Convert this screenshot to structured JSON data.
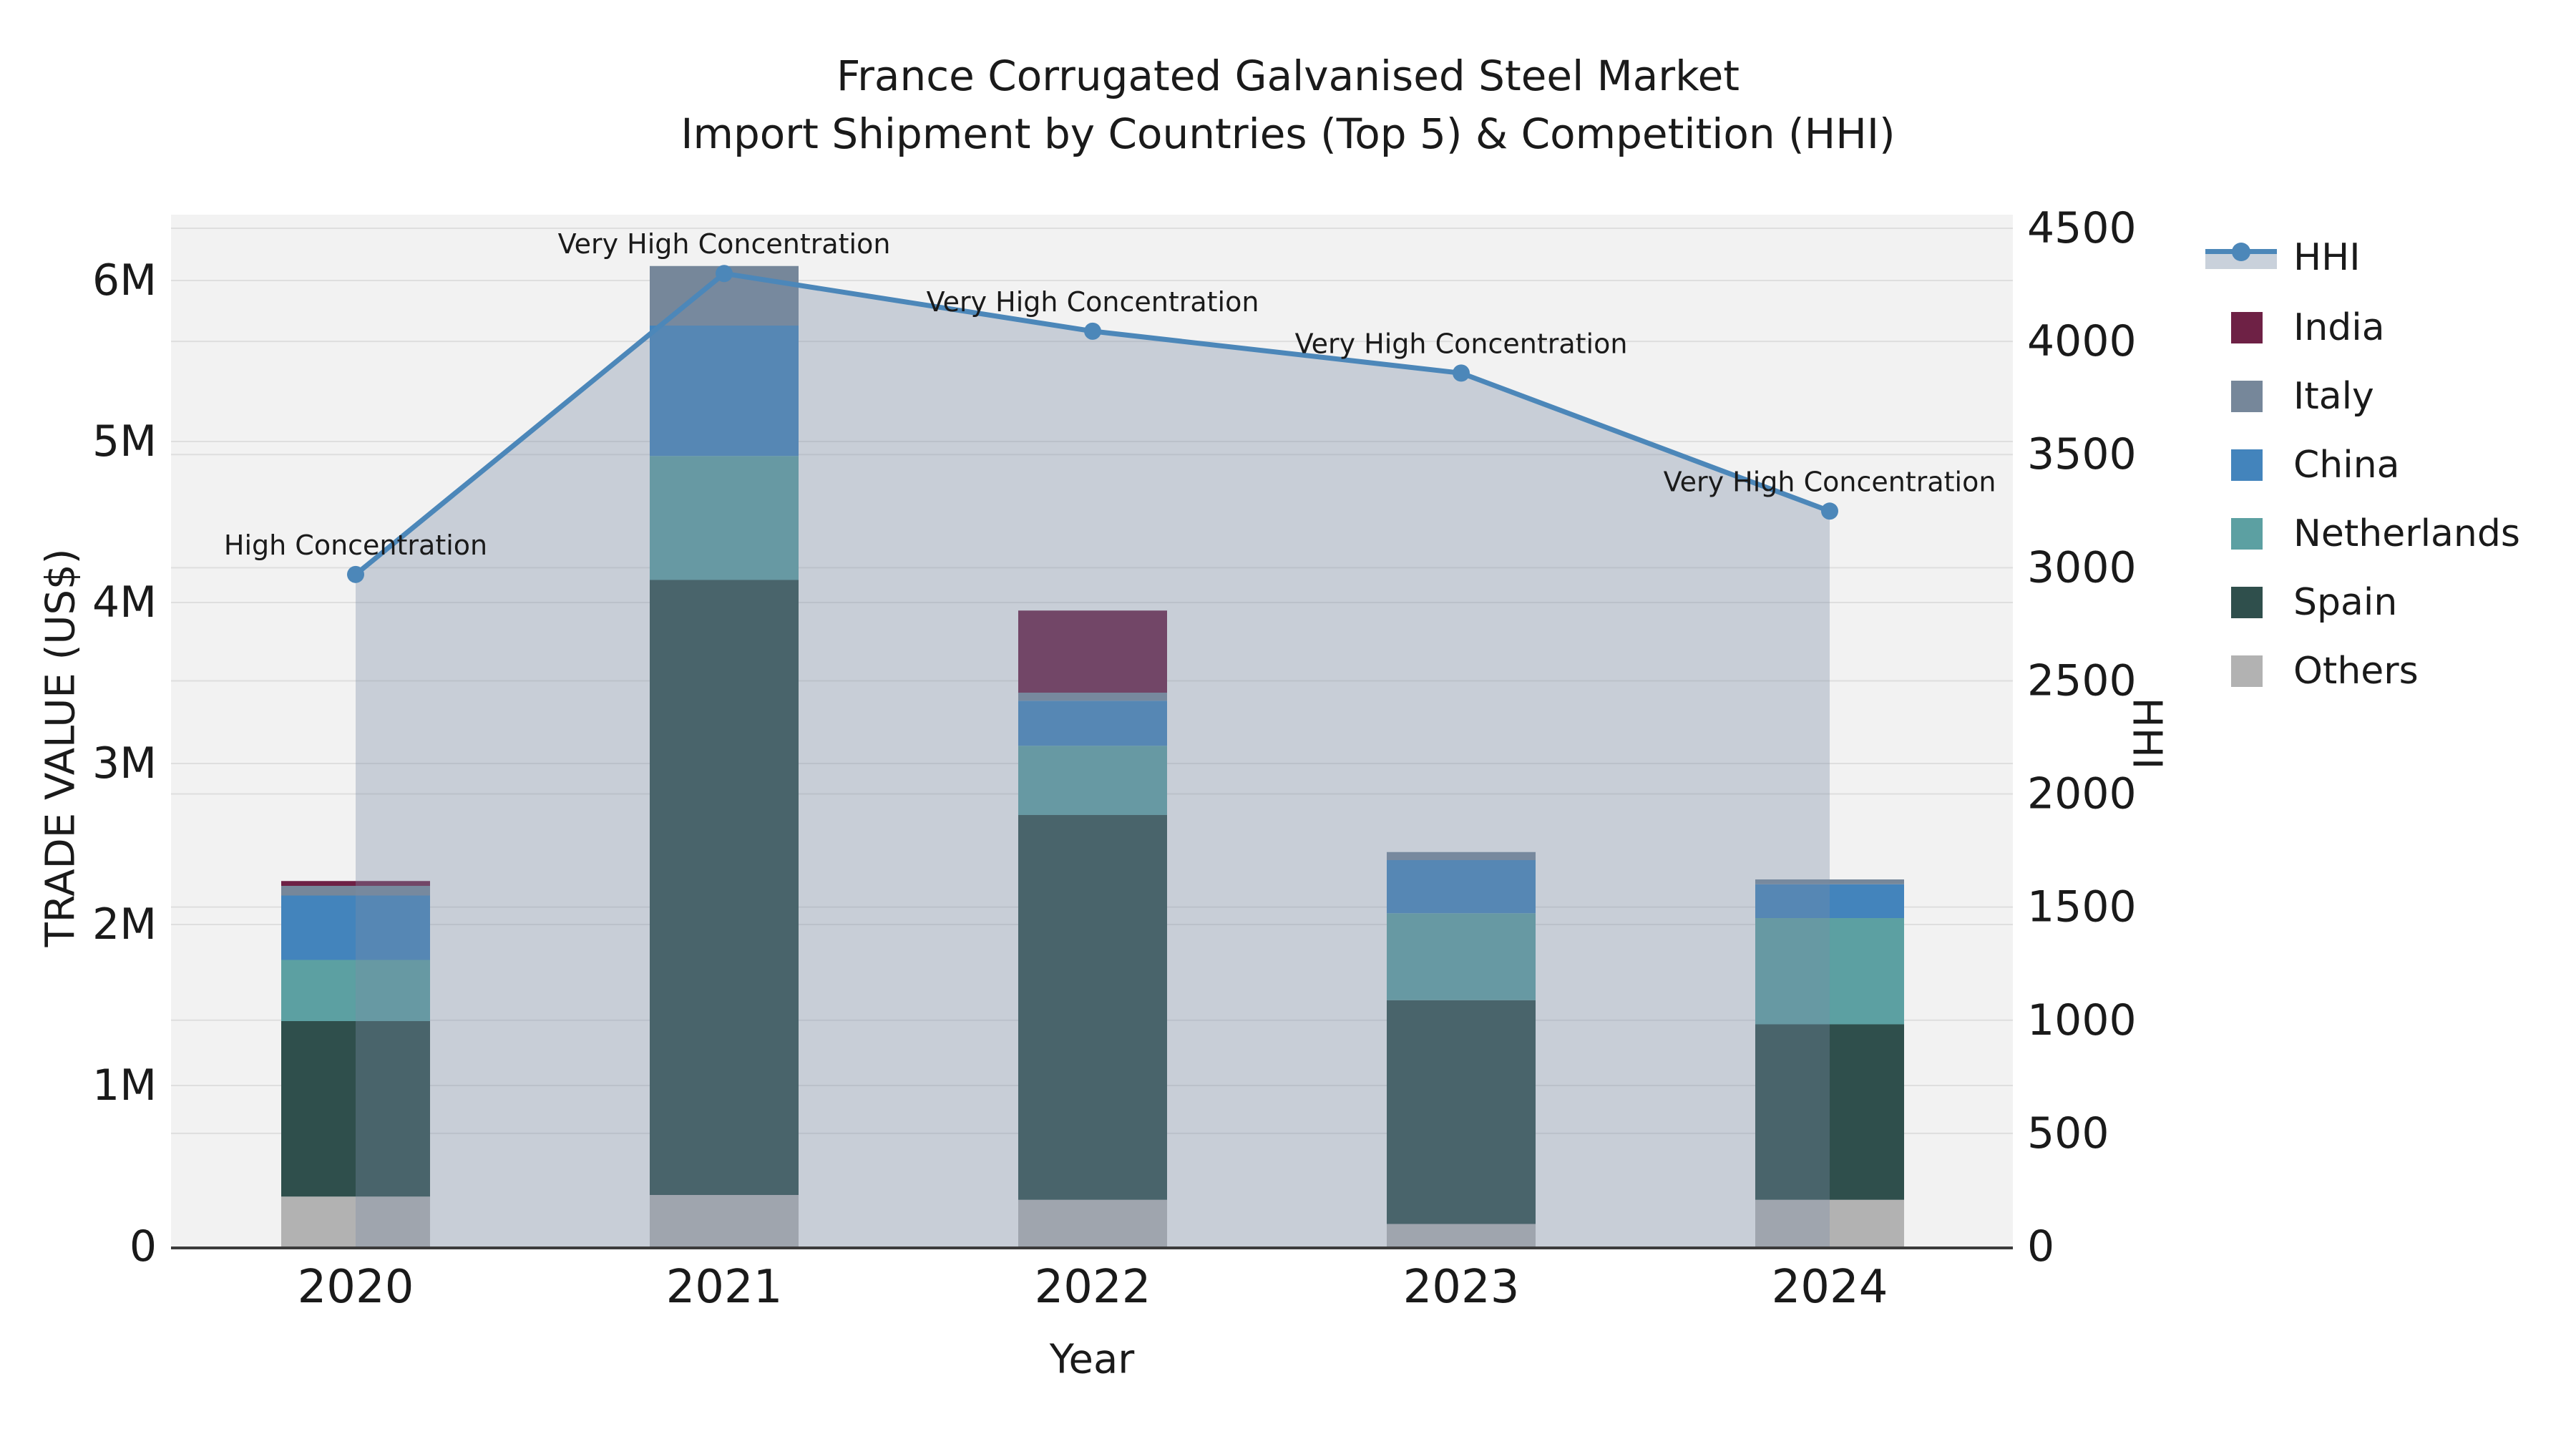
{
  "title": {
    "line1": "France Corrugated Galvanised Steel Market",
    "line2": "Import Shipment by Countries (Top 5) & Competition (HHI)"
  },
  "axes": {
    "x_label": "Year",
    "y_left_label": "TRADE VALUE (US$)",
    "y_right_label": "HHI"
  },
  "chart_data": {
    "type": "combo: stacked bar (trade value, left axis) + line with markers and area fill (HHI, right axis)",
    "categories": [
      "2020",
      "2021",
      "2022",
      "2023",
      "2024"
    ],
    "bar_unit": "US$ millions",
    "stack_order_bottom_to_top": [
      "Others",
      "Spain",
      "Netherlands",
      "China",
      "Italy",
      "India"
    ],
    "series": [
      {
        "name": "India",
        "color": "#6E2145",
        "values": [
          0.03,
          0.0,
          0.51,
          0.0,
          0.0
        ]
      },
      {
        "name": "Italy",
        "color": "#76879A",
        "values": [
          0.06,
          0.37,
          0.05,
          0.05,
          0.03
        ]
      },
      {
        "name": "China",
        "color": "#4384BC",
        "values": [
          0.4,
          0.81,
          0.28,
          0.33,
          0.21
        ]
      },
      {
        "name": "Netherlands",
        "color": "#5CA0A2",
        "values": [
          0.38,
          0.77,
          0.43,
          0.54,
          0.66
        ]
      },
      {
        "name": "Spain",
        "color": "#2F4F4C",
        "values": [
          1.09,
          3.82,
          2.39,
          1.39,
          1.09
        ]
      },
      {
        "name": "Others",
        "color": "#B2B2B2",
        "values": [
          0.31,
          0.32,
          0.29,
          0.14,
          0.29
        ]
      }
    ],
    "bar_totals_millions": [
      2.27,
      6.09,
      3.95,
      2.45,
      2.28
    ],
    "line": {
      "name": "HHI",
      "color": "#4C87B9",
      "area_fill_color": "rgba(124,141,167,0.35)",
      "values": [
        2970,
        4300,
        4045,
        3860,
        3250
      ]
    },
    "annotations": [
      "High Concentration",
      "Very High Concentration",
      "Very High Concentration",
      "Very High Concentration",
      "Very High Concentration"
    ],
    "y_left": {
      "tick_values": [
        0,
        1,
        2,
        3,
        4,
        5,
        6
      ],
      "tick_labels": [
        "0",
        "1M",
        "2M",
        "3M",
        "4M",
        "5M",
        "6M"
      ],
      "range_millions": [
        0,
        6.41
      ]
    },
    "y_right": {
      "tick_values": [
        0,
        500,
        1000,
        1500,
        2000,
        2500,
        3000,
        3500,
        4000,
        4500
      ],
      "tick_labels": [
        "0",
        "500",
        "1000",
        "1500",
        "2000",
        "2500",
        "3000",
        "3500",
        "4000",
        "4500"
      ],
      "range": [
        0,
        4560
      ]
    },
    "grid": true,
    "plot_background": "#F2F2F2",
    "gridline_color": "#DEDEDE",
    "axis_line_color": "#3C3C3C",
    "text_color": "#1A1A1A",
    "legend_position": "right"
  },
  "legend": {
    "items": [
      {
        "label": "HHI",
        "type": "line",
        "color": "#4C87B9"
      },
      {
        "label": "India",
        "type": "swatch",
        "color": "#6E2145"
      },
      {
        "label": "Italy",
        "type": "swatch",
        "color": "#76879A"
      },
      {
        "label": "China",
        "type": "swatch",
        "color": "#4384BC"
      },
      {
        "label": "Netherlands",
        "type": "swatch",
        "color": "#5CA0A2"
      },
      {
        "label": "Spain",
        "type": "swatch",
        "color": "#2F4F4C"
      },
      {
        "label": "Others",
        "type": "swatch",
        "color": "#B2B2B2"
      }
    ]
  }
}
